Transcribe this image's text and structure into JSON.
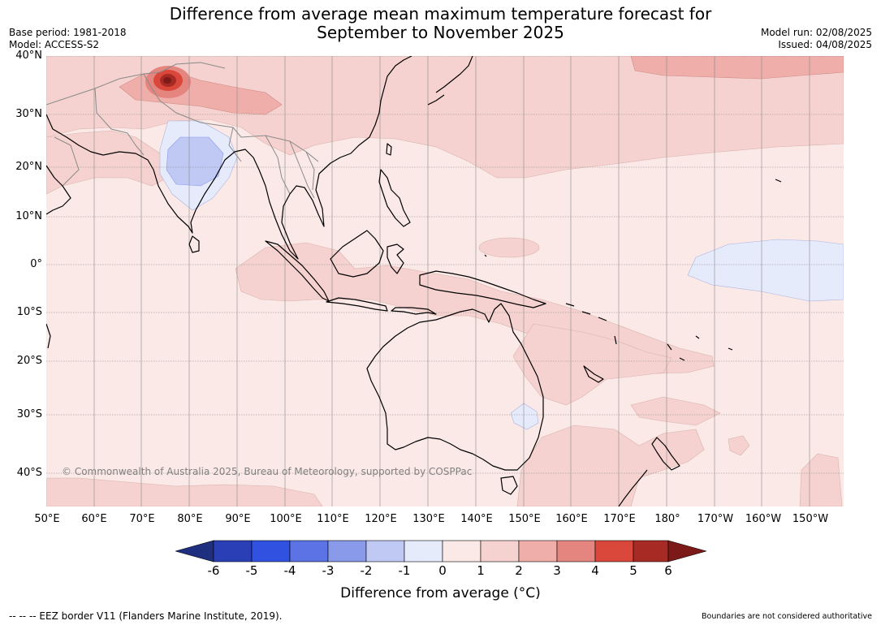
{
  "header": {
    "title_line1": "Difference from average mean maximum temperature forecast for",
    "title_line2": "September to November 2025",
    "base_period": "Base period: 1981-2018",
    "model": "Model: ACCESS-S2",
    "model_run": "Model run: 02/08/2025",
    "issued": "Issued: 04/08/2025"
  },
  "map": {
    "lon_range": [
      50,
      205
    ],
    "lat_range": [
      -47,
      40
    ],
    "lat_labels": [
      "40°N",
      "30°N",
      "20°N",
      "10°N",
      "0°",
      "10°S",
      "20°S",
      "30°S",
      "40°S"
    ],
    "lon_labels": [
      "50°E",
      "60°E",
      "70°E",
      "80°E",
      "90°E",
      "100°E",
      "110°E",
      "120°E",
      "130°E",
      "140°E",
      "150°E",
      "160°E",
      "170°E",
      "180°",
      "170°W",
      "160°W",
      "150°W"
    ],
    "credit": "© Commonwealth of Australia 2025, Bureau of Meteorology, supported by COSPPac",
    "colors": {
      "background_0_to_1": "#fbe9e7",
      "anomaly_1_to_2": "#f5d2cf",
      "anomaly_2_to_3": "#efaeaa",
      "anomaly_3_to_4": "#e58580",
      "anomaly_4_to_5": "#d9483a",
      "anomaly_5_to_6": "#a82a24",
      "anomaly_above_6": "#7b1a18",
      "anomaly_minus1_to_0": "#e6ebfb",
      "anomaly_minus2_to_minus1": "#c0c8f4",
      "coastline": "#000000",
      "borders": "#8a8a8a"
    }
  },
  "legend": {
    "ticks": [
      "-6",
      "-5",
      "-4",
      "-3",
      "-2",
      "-1",
      "0",
      "1",
      "2",
      "3",
      "4",
      "5",
      "6"
    ],
    "colors": [
      "#1f2f80",
      "#2a3fb5",
      "#3152e0",
      "#5b73e4",
      "#8a9aeb",
      "#c0c8f4",
      "#e6ebfb",
      "#fbe9e7",
      "#f5d2cf",
      "#efaeaa",
      "#e58580",
      "#d9483a",
      "#a82a24",
      "#7b1a18"
    ],
    "label": "Difference from average (°C)"
  },
  "footer": {
    "eez_note": "--  --  -- EEZ border V11 (Flanders Marine Institute, 2019).",
    "disclaimer": "Boundaries are not considered authoritative"
  }
}
